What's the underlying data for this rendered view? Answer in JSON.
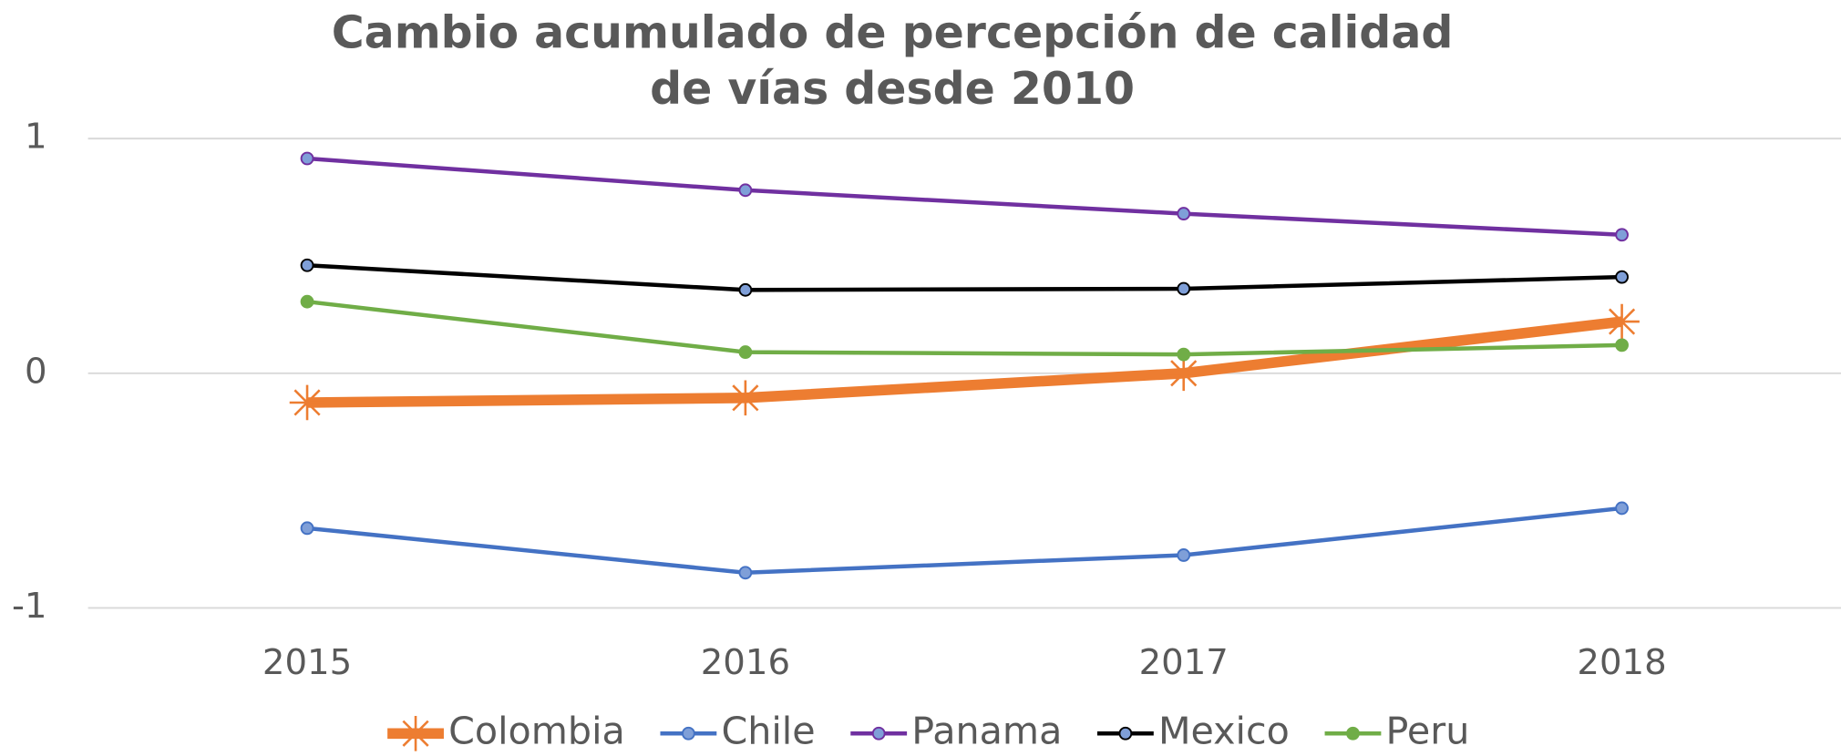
{
  "chart_data": {
    "type": "line",
    "title": [
      "Cambio acumulado de percepción de calidad",
      "de vías desde 2010"
    ],
    "categories": [
      "2015",
      "2016",
      "2017",
      "2018"
    ],
    "series": [
      {
        "name": "Colombia",
        "color": "#ed7d31",
        "values": [
          -0.125,
          -0.105,
          0.0,
          0.22
        ]
      },
      {
        "name": "Chile",
        "color": "#4472c4",
        "values": [
          -0.66,
          -0.85,
          -0.775,
          -0.575
        ]
      },
      {
        "name": "Panama",
        "color": "#7030a0",
        "values": [
          0.915,
          0.78,
          0.68,
          0.59
        ]
      },
      {
        "name": "Mexico",
        "color": "#000000",
        "values": [
          0.46,
          0.355,
          0.36,
          0.41
        ]
      },
      {
        "name": "Peru",
        "color": "#70ad47",
        "values": [
          0.305,
          0.09,
          0.08,
          0.12
        ]
      }
    ],
    "ylim": [
      -1,
      1
    ],
    "yticks": [
      -1,
      0,
      1
    ],
    "grid": true,
    "legend": "bottom"
  }
}
